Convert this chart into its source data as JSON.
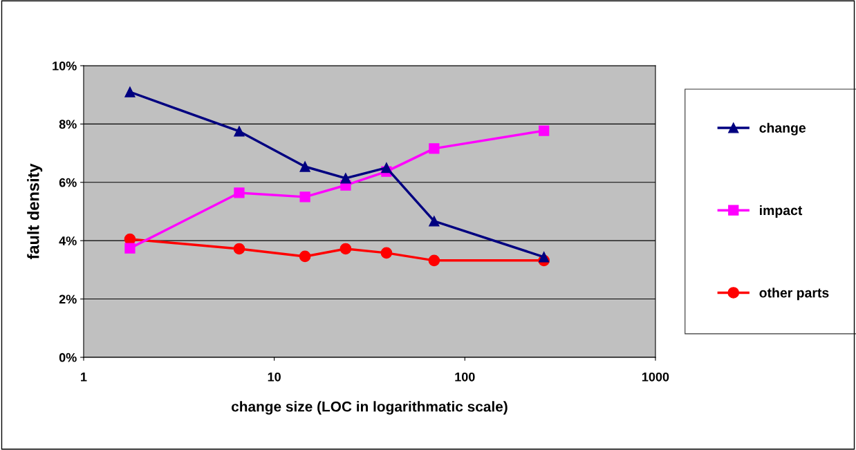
{
  "chart_data": {
    "type": "line",
    "xlabel": "change size (LOC in logarithmatic scale)",
    "ylabel": "fault density",
    "log": "x",
    "xlim": [
      1,
      1000
    ],
    "xticks": [
      1,
      10,
      100,
      1000
    ],
    "ylim": [
      0,
      10
    ],
    "yticks": [
      {
        "value": 0,
        "label": "0%"
      },
      {
        "value": 2,
        "label": "2%"
      },
      {
        "value": 4,
        "label": "4%"
      },
      {
        "value": 6,
        "label": "6%"
      },
      {
        "value": 8,
        "label": "8%"
      },
      {
        "value": 10,
        "label": "10%"
      }
    ],
    "x": [
      1.75,
      6.55,
      14.5,
      23.7,
      38.8,
      69,
      260
    ],
    "grid": "y",
    "legend": "right",
    "series": [
      {
        "name": "change",
        "color": "#000080",
        "marker": "triangle",
        "values": [
          9.1,
          7.75,
          6.54,
          6.14,
          6.5,
          4.67,
          3.44
        ]
      },
      {
        "name": "impact",
        "color": "#ff00ff",
        "marker": "square",
        "values": [
          3.74,
          5.64,
          5.5,
          5.9,
          6.37,
          7.16,
          7.77
        ]
      },
      {
        "name": "other parts",
        "color": "#ff0000",
        "marker": "circle",
        "values": [
          4.05,
          3.72,
          3.46,
          3.72,
          3.58,
          3.32,
          3.32
        ]
      }
    ]
  }
}
